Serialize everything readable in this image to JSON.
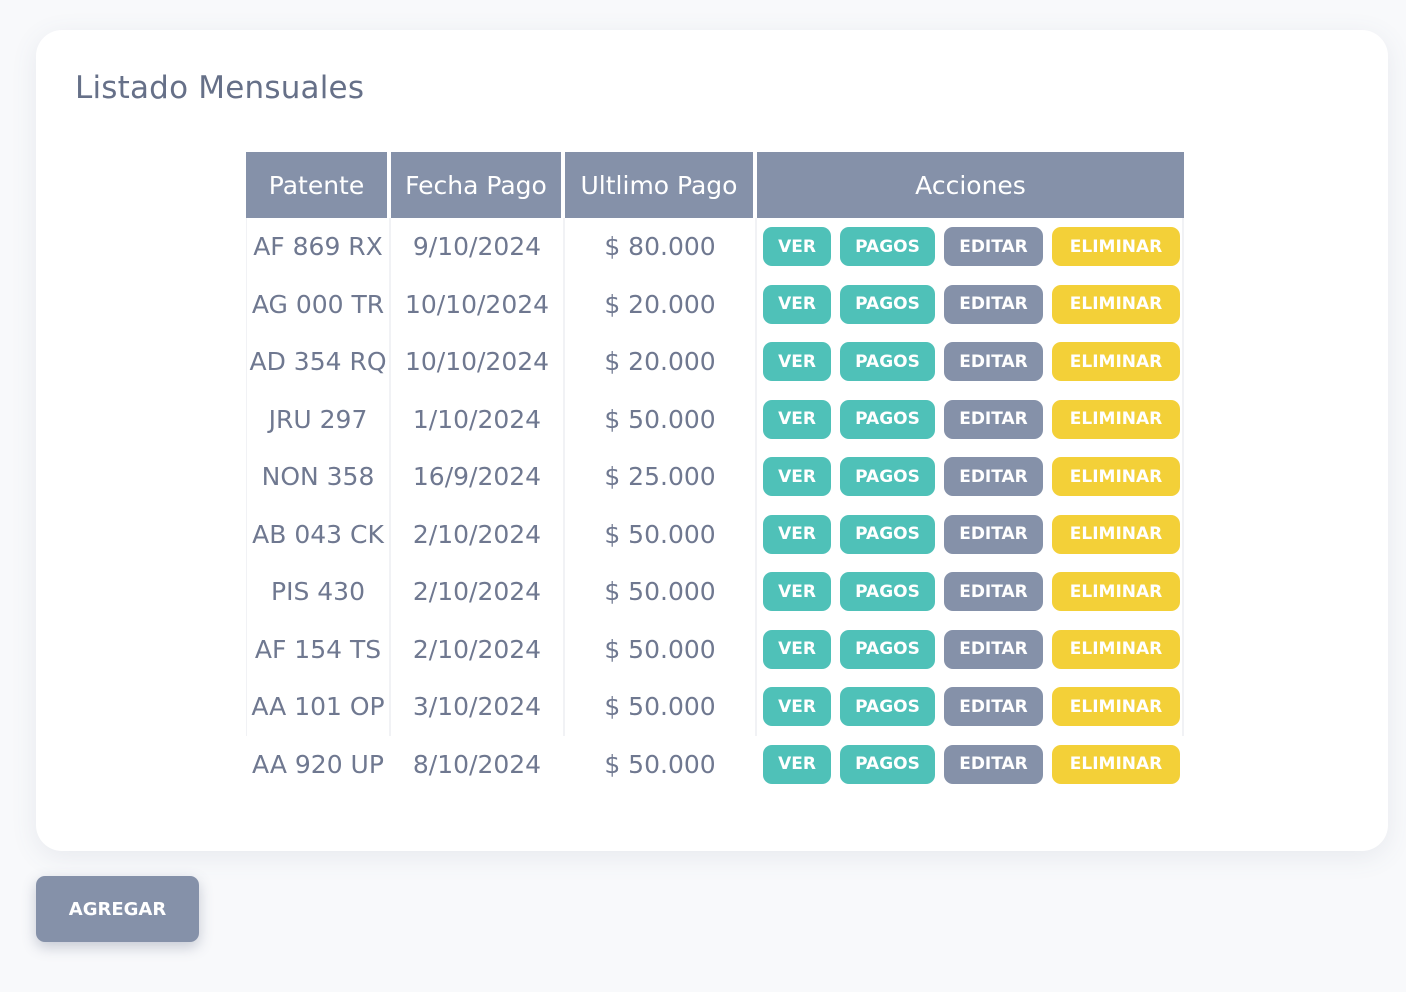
{
  "page": {
    "title": "Listado Mensuales"
  },
  "table": {
    "headers": [
      "Patente",
      "Fecha Pago",
      "Ultlimo Pago",
      "Acciones"
    ],
    "rows": [
      {
        "patente": "AF 869 RX",
        "fecha_pago": "9/10/2024",
        "ultimo_pago": "$ 80.000"
      },
      {
        "patente": "AG 000 TR",
        "fecha_pago": "10/10/2024",
        "ultimo_pago": "$ 20.000"
      },
      {
        "patente": "AD 354 RQ",
        "fecha_pago": "10/10/2024",
        "ultimo_pago": "$ 20.000"
      },
      {
        "patente": "JRU 297",
        "fecha_pago": "1/10/2024",
        "ultimo_pago": "$ 50.000"
      },
      {
        "patente": "NON 358",
        "fecha_pago": "16/9/2024",
        "ultimo_pago": "$ 25.000"
      },
      {
        "patente": "AB 043 CK",
        "fecha_pago": "2/10/2024",
        "ultimo_pago": "$ 50.000"
      },
      {
        "patente": "PIS 430",
        "fecha_pago": "2/10/2024",
        "ultimo_pago": "$ 50.000"
      },
      {
        "patente": "AF 154 TS",
        "fecha_pago": "2/10/2024",
        "ultimo_pago": "$ 50.000"
      },
      {
        "patente": "AA 101 OP",
        "fecha_pago": "3/10/2024",
        "ultimo_pago": "$ 50.000"
      },
      {
        "patente": "AA 920 UP",
        "fecha_pago": "8/10/2024",
        "ultimo_pago": "$ 50.000"
      }
    ]
  },
  "actions": {
    "ver": "VER",
    "pagos": "PAGOS",
    "editar": "EDITAR",
    "eliminar": "ELIMINAR"
  },
  "add_button": {
    "label": "AGREGAR"
  },
  "colors": {
    "header_bg": "#8591a9",
    "teal": "#4fc1b8",
    "gray": "#8591a9",
    "yellow": "#f3d038",
    "text": "#6f7890",
    "title": "#667088"
  }
}
